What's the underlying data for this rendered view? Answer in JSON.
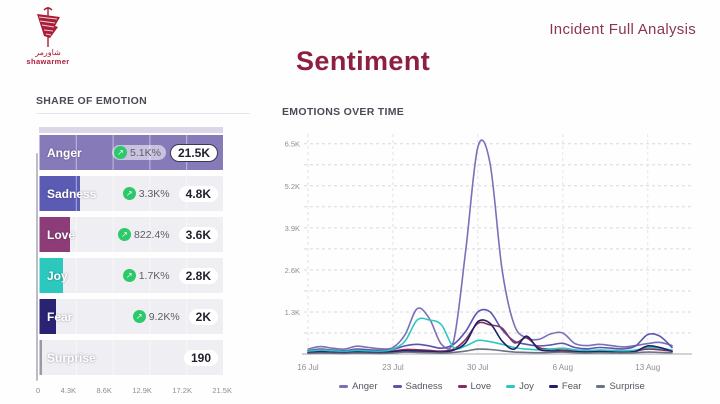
{
  "header": {
    "brand_wordmark": "shawarmer",
    "brand_arabic": "شاورمر",
    "right_title": "Incident Full Analysis",
    "brand_color": "#a81e38"
  },
  "page_title": "Sentiment",
  "colors": {
    "heading_maroon": "#8e1f41",
    "positive_green": "#2bc96a",
    "grid_gray": "#d8d8e0",
    "axis_gray": "#c4c4cc"
  },
  "chart_data": [
    {
      "type": "bar",
      "title": "SHARE OF EMOTION",
      "categories": [
        "Anger",
        "Sadness",
        "Love",
        "Joy",
        "Fear",
        "Surprise"
      ],
      "values": [
        21500,
        4800,
        3600,
        2800,
        2000,
        190
      ],
      "value_labels": [
        "21.5K",
        "4.8K",
        "3.6K",
        "2.8K",
        "2K",
        "190"
      ],
      "change_labels": [
        "5.1K%",
        "3.3K%",
        "822.4%",
        "1.7K%",
        "9.2K%",
        null
      ],
      "colors": [
        "#877ab8",
        "#5b5bb3",
        "#8d3c77",
        "#2cc8be",
        "#2a2272",
        "#9a9aa4"
      ],
      "highlight_index": 0,
      "xlim": [
        0,
        21500
      ],
      "axis_ticks": [
        "0",
        "4.3K",
        "8.6K",
        "12.9K",
        "17.2K",
        "21.5K"
      ]
    },
    {
      "type": "line",
      "title": "EMOTIONS OVER TIME",
      "x_tick_labels": [
        "16 Jul",
        "23 Jul",
        "30 Jul",
        "6 Aug",
        "13 Aug"
      ],
      "x_tick_indices": [
        0,
        7,
        14,
        21,
        28
      ],
      "n_points": 31,
      "ylim": [
        0,
        6800
      ],
      "y_ticks": [
        1300,
        2600,
        3900,
        5200,
        6500
      ],
      "y_tick_labels": [
        "1.3K",
        "2.6K",
        "3.9K",
        "5.2K",
        "6.5K"
      ],
      "grid_step": 650,
      "legend_position": "bottom",
      "series": [
        {
          "name": "Anger",
          "color": "#7b70b8",
          "values": [
            150,
            230,
            180,
            150,
            240,
            200,
            160,
            200,
            600,
            1400,
            1100,
            300,
            400,
            3200,
            6400,
            5900,
            2600,
            900,
            500,
            450,
            620,
            650,
            320,
            260,
            300,
            260,
            220,
            260,
            320,
            360,
            260
          ]
        },
        {
          "name": "Sadness",
          "color": "#5a55ad",
          "values": [
            100,
            150,
            120,
            100,
            150,
            130,
            110,
            140,
            250,
            300,
            250,
            180,
            300,
            700,
            1300,
            1300,
            750,
            400,
            300,
            250,
            280,
            330,
            200,
            160,
            200,
            180,
            160,
            250,
            600,
            550,
            200
          ]
        },
        {
          "name": "Love",
          "color": "#84305e",
          "values": [
            60,
            90,
            70,
            60,
            80,
            70,
            60,
            90,
            140,
            130,
            110,
            90,
            150,
            450,
            950,
            900,
            800,
            350,
            500,
            200,
            150,
            120,
            100,
            90,
            100,
            90,
            80,
            100,
            150,
            130,
            90
          ]
        },
        {
          "name": "Joy",
          "color": "#2cc8be",
          "values": [
            80,
            120,
            100,
            80,
            110,
            90,
            80,
            150,
            400,
            1050,
            1050,
            900,
            200,
            250,
            420,
            380,
            300,
            200,
            150,
            130,
            150,
            180,
            130,
            110,
            120,
            110,
            100,
            120,
            200,
            180,
            120
          ]
        },
        {
          "name": "Fear",
          "color": "#221f69",
          "values": [
            40,
            60,
            50,
            40,
            60,
            50,
            40,
            70,
            100,
            90,
            80,
            60,
            120,
            350,
            1000,
            950,
            400,
            150,
            550,
            150,
            100,
            80,
            70,
            60,
            70,
            60,
            50,
            80,
            250,
            200,
            80
          ]
        },
        {
          "name": "Surprise",
          "color": "#6b7280",
          "values": [
            20,
            30,
            25,
            20,
            30,
            25,
            20,
            30,
            60,
            50,
            40,
            30,
            50,
            90,
            150,
            140,
            100,
            60,
            50,
            40,
            50,
            60,
            40,
            30,
            40,
            35,
            30,
            40,
            60,
            50,
            40
          ]
        }
      ]
    }
  ]
}
